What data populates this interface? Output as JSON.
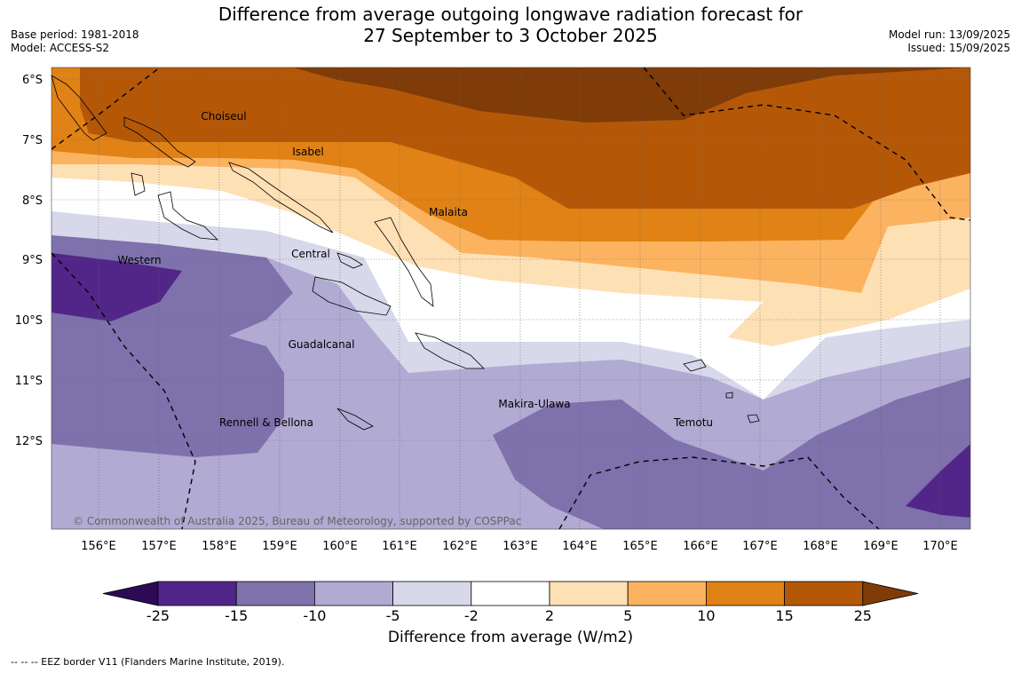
{
  "title": {
    "line1": "Difference from average outgoing longwave radiation forecast for",
    "line2": "27 September to 3 October 2025"
  },
  "meta_left": {
    "base_period": "Base period: 1981-2018",
    "model": "Model: ACCESS-S2"
  },
  "meta_right": {
    "model_run": "Model run: 13/09/2025",
    "issued": "Issued: 15/09/2025"
  },
  "map": {
    "lat_labels": [
      "6°S",
      "7°S",
      "8°S",
      "9°S",
      "10°S",
      "11°S",
      "12°S"
    ],
    "lon_labels": [
      "156°E",
      "157°E",
      "158°E",
      "159°E",
      "160°E",
      "161°E",
      "162°E",
      "163°E",
      "164°E",
      "165°E",
      "166°E",
      "167°E",
      "168°E",
      "169°E",
      "170°E"
    ],
    "places": [
      {
        "name": "Choiseul"
      },
      {
        "name": "Isabel"
      },
      {
        "name": "Malaita"
      },
      {
        "name": "Central"
      },
      {
        "name": "Western"
      },
      {
        "name": "Guadalcanal"
      },
      {
        "name": "Makira-Ulawa"
      },
      {
        "name": "Temotu"
      },
      {
        "name": "Rennell & Bellona"
      }
    ],
    "copyright": "© Commonwealth of Australia 2025, Bureau of Meteorology, supported by COSPPac"
  },
  "colorbar": {
    "labels": [
      "-25",
      "-15",
      "-10",
      "-5",
      "-2",
      "2",
      "5",
      "10",
      "15",
      "25"
    ],
    "colors": {
      "lt_-25": "#2d0a55",
      "-25_-15": "#522688",
      "-15_-10": "#7f71ac",
      "-10_-5": "#b1aad2",
      "-5_-2": "#d8d8eb",
      "-2_2": "#ffffff",
      "2_5": "#fee0b5",
      "5_10": "#fbb360",
      "10_15": "#e08215",
      "15_25": "#b45808",
      "gt_25": "#7f3b08"
    },
    "title": "Difference from average (W/m2)"
  },
  "legend_note": "--  --  -- EEZ border V11 (Flanders Marine Institute, 2019)."
}
